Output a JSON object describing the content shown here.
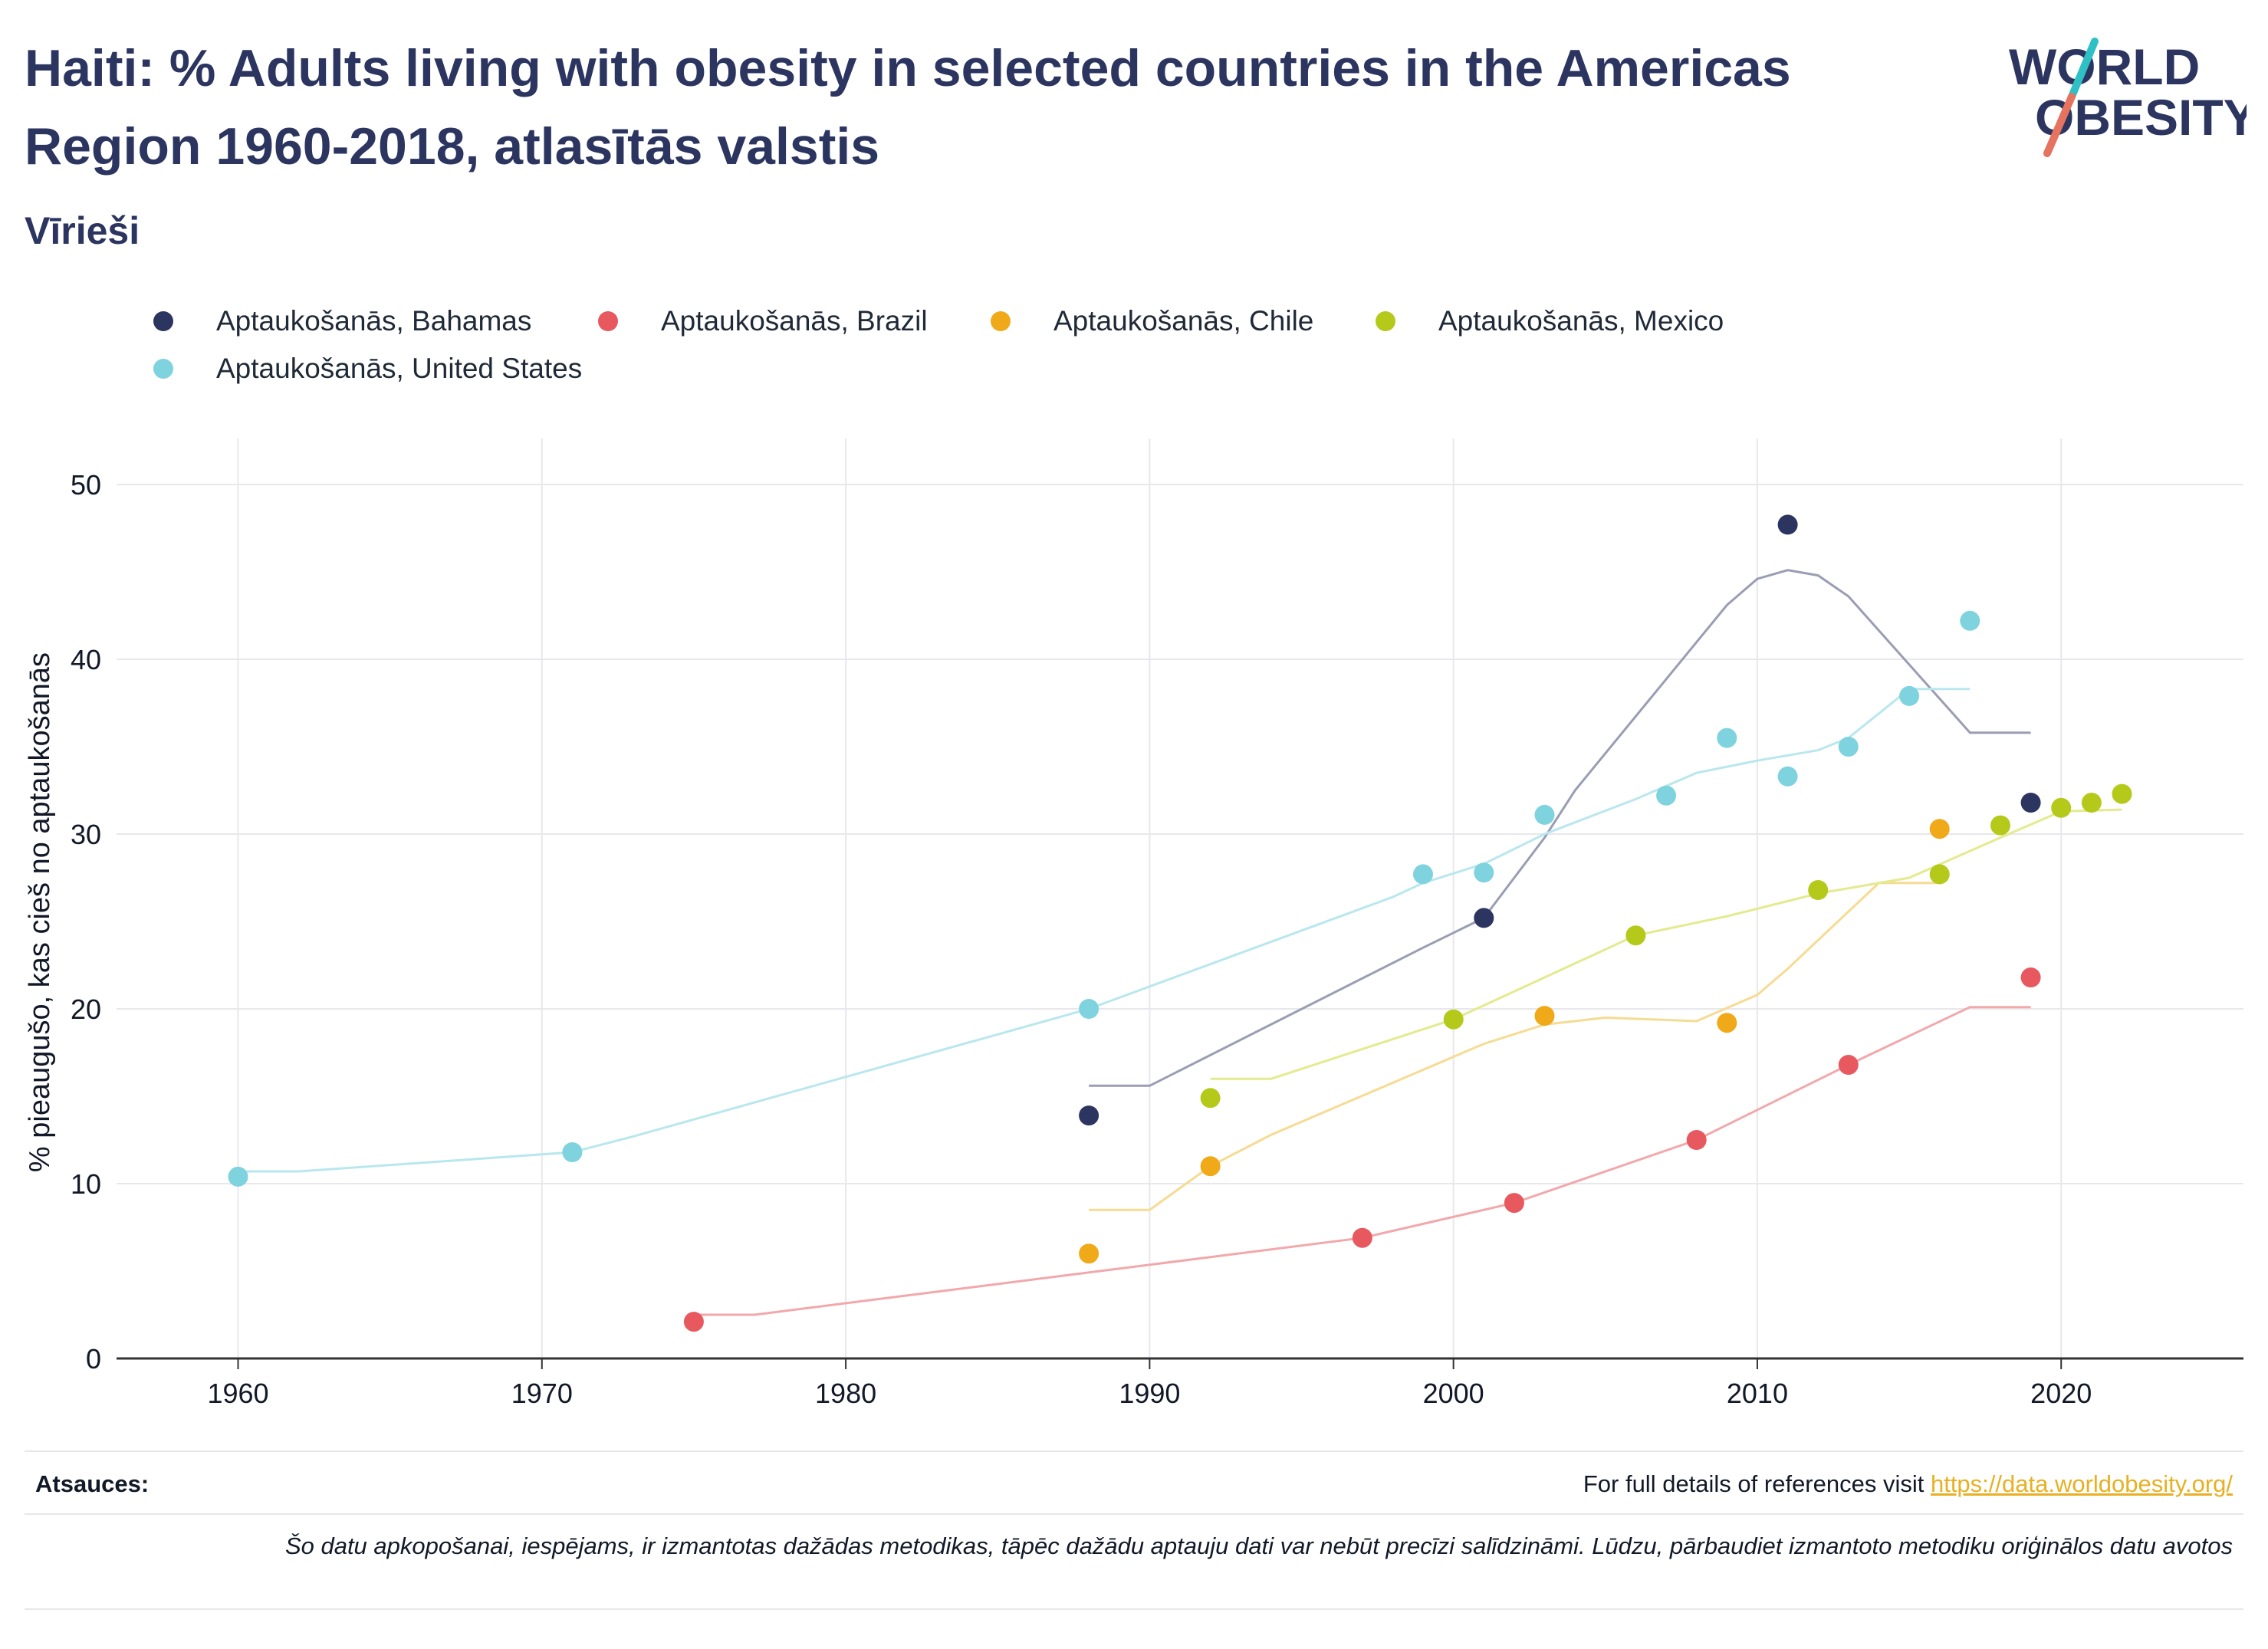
{
  "title": "Haiti: % Adults living with obesity in selected countries in the Americas Region 1960-2018, atlasītās valstis",
  "subtitle": "Vīrieši",
  "logo": {
    "line1": "WORLD",
    "line2": "OBESITY"
  },
  "legend": [
    {
      "label": "Aptaukošanās, Bahamas",
      "color": "#2b3560"
    },
    {
      "label": "Aptaukošanās, Brazil",
      "color": "#e8585f"
    },
    {
      "label": "Aptaukošanās, Chile",
      "color": "#f0a919"
    },
    {
      "label": "Aptaukošanās, Mexico",
      "color": "#b5c91b"
    },
    {
      "label": "Aptaukošanās, United States",
      "color": "#7fd3de"
    }
  ],
  "chart_data": {
    "type": "scatter",
    "ylabel": "% pieaugušo, kas cieš no aptaukošanās",
    "xlabel": "",
    "xlim": [
      1956,
      2026
    ],
    "ylim": [
      0,
      50
    ],
    "xticks": [
      1960,
      1970,
      1980,
      1990,
      2000,
      2010,
      2020
    ],
    "yticks": [
      0,
      10,
      20,
      30,
      40,
      50
    ],
    "grid": true,
    "legend_position": "top",
    "series": [
      {
        "name": "Aptaukošanās, Bahamas",
        "color": "#2b3560",
        "trend_color": "#9a9db3",
        "points": [
          [
            1988,
            13.9
          ],
          [
            2001,
            25.2
          ],
          [
            2011,
            47.7
          ],
          [
            2019,
            31.8
          ]
        ],
        "trend": [
          [
            1988,
            15.6
          ],
          [
            1990,
            15.6
          ],
          [
            1999,
            23.5
          ],
          [
            2001,
            25.2
          ],
          [
            2002,
            27.5
          ],
          [
            2003,
            29.8
          ],
          [
            2004,
            32.5
          ],
          [
            2009,
            43.1
          ],
          [
            2010,
            44.6
          ],
          [
            2011,
            45.1
          ],
          [
            2012,
            44.8
          ],
          [
            2013,
            43.6
          ],
          [
            2017,
            35.8
          ],
          [
            2019,
            35.8
          ]
        ]
      },
      {
        "name": "Aptaukošanās, Brazil",
        "color": "#e8585f",
        "trend_color": "#f2a8ab",
        "points": [
          [
            1975,
            2.1
          ],
          [
            1997,
            6.9
          ],
          [
            2002,
            8.9
          ],
          [
            2008,
            12.5
          ],
          [
            2013,
            16.8
          ],
          [
            2019,
            21.8
          ]
        ],
        "trend": [
          [
            1975,
            2.5
          ],
          [
            1977,
            2.5
          ],
          [
            1997,
            6.9
          ],
          [
            2002,
            8.9
          ],
          [
            2008,
            12.5
          ],
          [
            2013,
            16.8
          ],
          [
            2017,
            20.1
          ],
          [
            2019,
            20.1
          ]
        ]
      },
      {
        "name": "Aptaukošanās, Chile",
        "color": "#f0a919",
        "trend_color": "#f6db93",
        "points": [
          [
            1988,
            6.0
          ],
          [
            1992,
            11.0
          ],
          [
            2003,
            19.6
          ],
          [
            2009,
            19.2
          ],
          [
            2016,
            30.3
          ]
        ],
        "trend": [
          [
            1988,
            8.5
          ],
          [
            1990,
            8.5
          ],
          [
            1992,
            11.0
          ],
          [
            1994,
            12.8
          ],
          [
            2001,
            18.0
          ],
          [
            2003,
            19.1
          ],
          [
            2005,
            19.5
          ],
          [
            2008,
            19.3
          ],
          [
            2010,
            20.8
          ],
          [
            2011,
            22.3
          ],
          [
            2014,
            27.2
          ],
          [
            2016,
            27.2
          ]
        ]
      },
      {
        "name": "Aptaukošanās, Mexico",
        "color": "#b5c91b",
        "trend_color": "#e4ea8e",
        "points": [
          [
            1992,
            14.9
          ],
          [
            2000,
            19.4
          ],
          [
            2006,
            24.2
          ],
          [
            2012,
            26.8
          ],
          [
            2016,
            27.7
          ],
          [
            2018,
            30.5
          ],
          [
            2020,
            31.5
          ],
          [
            2021,
            31.8
          ],
          [
            2022,
            32.3
          ]
        ],
        "trend": [
          [
            1992,
            16.0
          ],
          [
            1994,
            16.0
          ],
          [
            2000,
            19.4
          ],
          [
            2006,
            24.2
          ],
          [
            2009,
            25.3
          ],
          [
            2012,
            26.6
          ],
          [
            2015,
            27.5
          ],
          [
            2018,
            29.8
          ],
          [
            2020,
            31.3
          ],
          [
            2022,
            31.4
          ]
        ]
      },
      {
        "name": "Aptaukošanās, United States",
        "color": "#7fd3de",
        "trend_color": "#b9e7ee",
        "points": [
          [
            1960,
            10.4
          ],
          [
            1971,
            11.8
          ],
          [
            1988,
            20.0
          ],
          [
            1999,
            27.7
          ],
          [
            2001,
            27.8
          ],
          [
            2003,
            31.1
          ],
          [
            2007,
            32.2
          ],
          [
            2009,
            35.5
          ],
          [
            2011,
            33.3
          ],
          [
            2013,
            35.0
          ],
          [
            2015,
            37.9
          ],
          [
            2017,
            42.2
          ]
        ],
        "trend": [
          [
            1960,
            10.7
          ],
          [
            1962,
            10.7
          ],
          [
            1971,
            11.8
          ],
          [
            1973,
            12.7
          ],
          [
            1988,
            20.0
          ],
          [
            1998,
            26.4
          ],
          [
            1999,
            27.2
          ],
          [
            2001,
            28.3
          ],
          [
            2003,
            30.0
          ],
          [
            2006,
            32.0
          ],
          [
            2008,
            33.5
          ],
          [
            2010,
            34.2
          ],
          [
            2012,
            34.8
          ],
          [
            2013,
            35.5
          ],
          [
            2015,
            38.3
          ],
          [
            2017,
            38.3
          ]
        ]
      }
    ]
  },
  "footer": {
    "sources_label": "Atsauces:",
    "sources_text": "For full details of references visit ",
    "sources_link": "https://data.worldobesity.org/",
    "note": "Šo datu apkopošanai, iespējams, ir izmantotas dažādas metodikas, tāpēc dažādu aptauju dati var nebūt precīzi salīdzināmi. Lūdzu, pārbaudiet izmantoto metodiku oriģinālos datu avotos"
  }
}
